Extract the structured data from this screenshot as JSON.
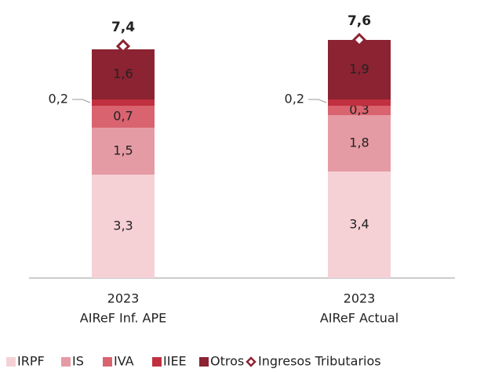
{
  "chart_data": {
    "type": "bar",
    "stacked": true,
    "categories": [
      [
        "2023",
        "AIReF Inf. APE"
      ],
      [
        "2023",
        "AIReF Actual"
      ]
    ],
    "series": [
      {
        "name": "IRPF",
        "color": "#f5d1d6",
        "label_color": "#333333",
        "values": [
          3.3,
          3.4
        ],
        "value_labels": [
          "3,3",
          "3,4"
        ]
      },
      {
        "name": "IS",
        "color": "#e59ba4",
        "label_color": "#333333",
        "values": [
          1.5,
          1.8
        ],
        "value_labels": [
          "1,5",
          "1,8"
        ]
      },
      {
        "name": "IVA",
        "color": "#d9636f",
        "label_color": "#ffffff",
        "values": [
          0.7,
          0.3
        ],
        "value_labels": [
          "0,7",
          "0,3"
        ]
      },
      {
        "name": "IIEE",
        "color": "#c1303f",
        "label_color": "#333333",
        "label_outside": true,
        "values": [
          0.2,
          0.2
        ],
        "value_labels": [
          "0,2",
          "0,2"
        ]
      },
      {
        "name": "Otros",
        "color": "#8b2332",
        "label_color": "#ffffff",
        "values": [
          1.6,
          1.9
        ],
        "value_labels": [
          "1,6",
          "1,9"
        ]
      },
      {
        "name": "Ingresos Tributarios",
        "type": "scatter",
        "marker": "diamond",
        "color": "#8b2332",
        "values": [
          7.4,
          7.6
        ],
        "value_labels": [
          "7,4",
          "7,6"
        ]
      }
    ],
    "legend": "bottom"
  }
}
